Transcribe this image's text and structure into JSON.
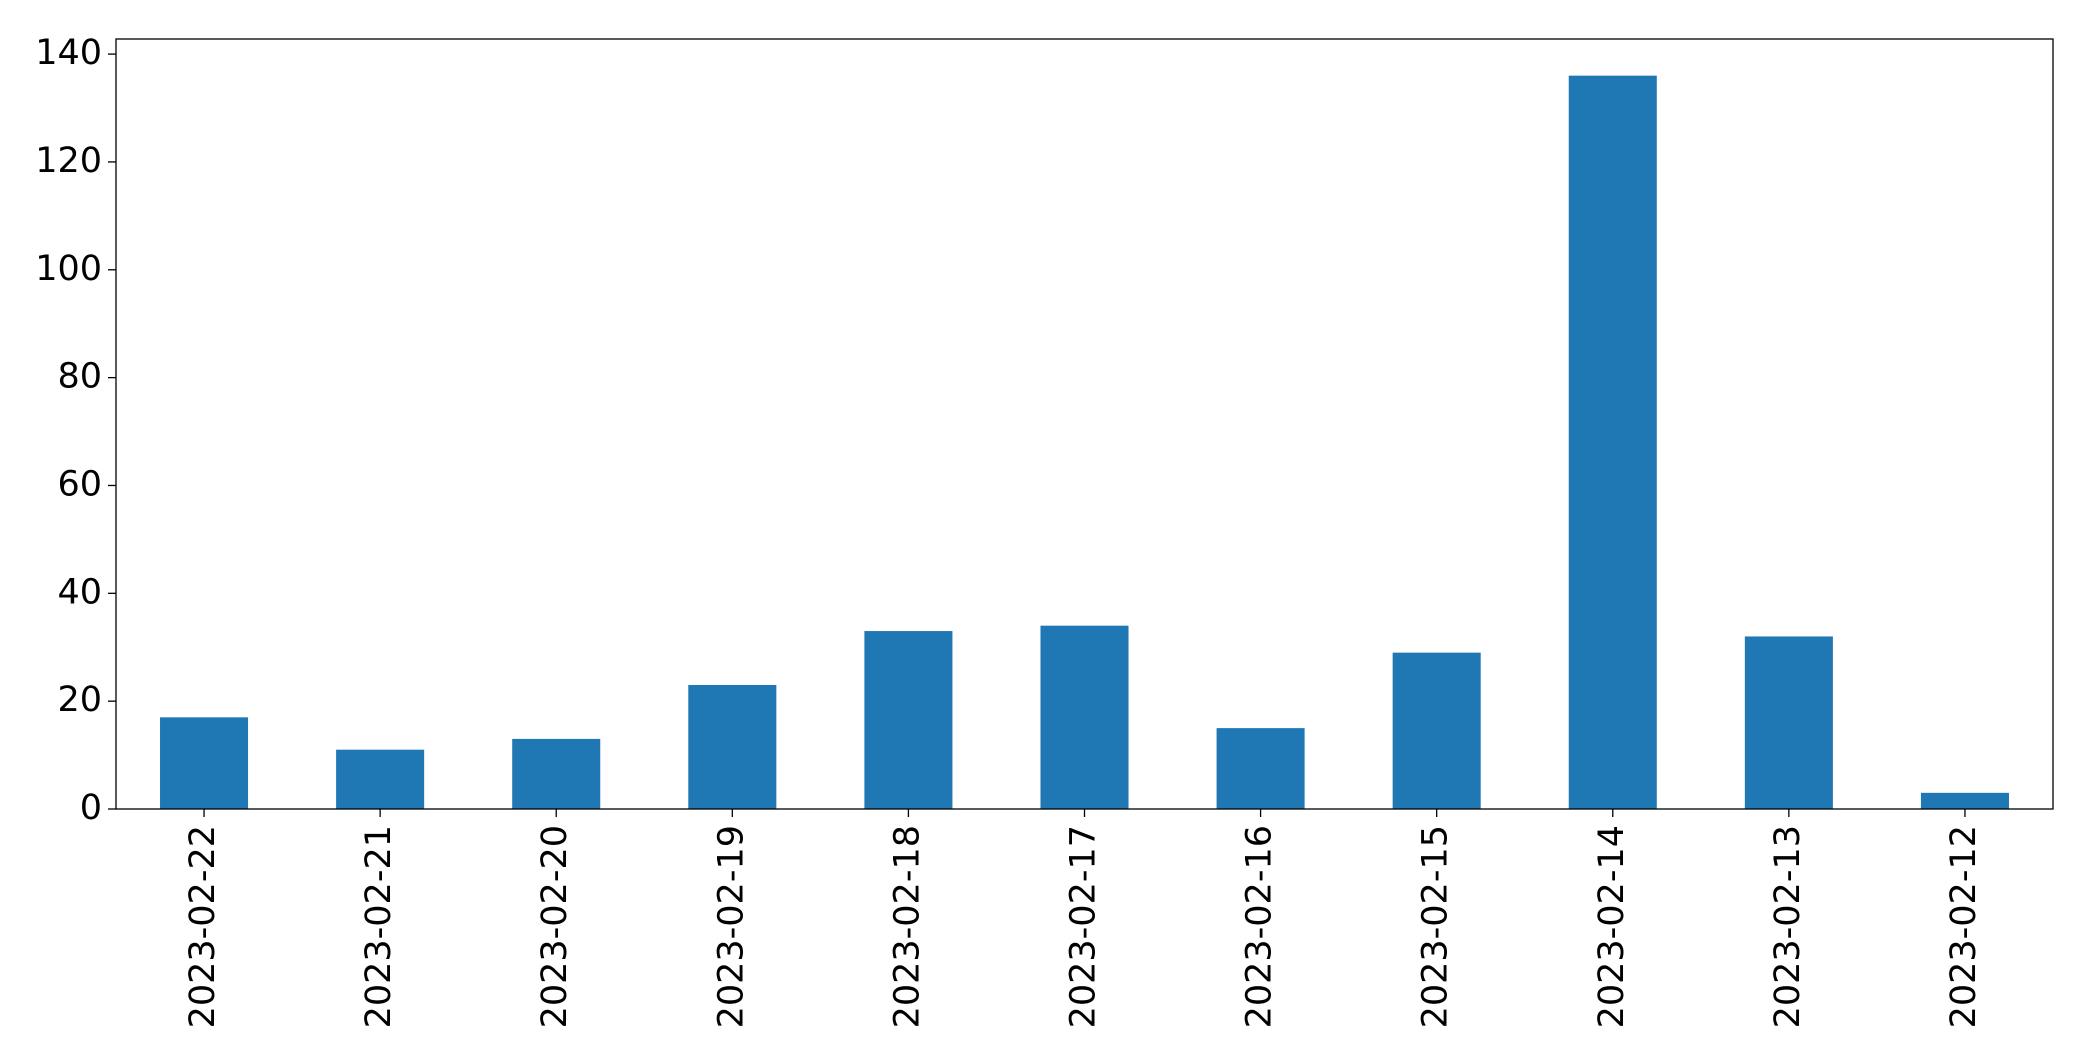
{
  "chart_data": {
    "type": "bar",
    "categories": [
      "2023-02-22",
      "2023-02-21",
      "2023-02-20",
      "2023-02-19",
      "2023-02-18",
      "2023-02-17",
      "2023-02-16",
      "2023-02-15",
      "2023-02-14",
      "2023-02-13",
      "2023-02-12"
    ],
    "values": [
      17,
      11,
      13,
      23,
      33,
      34,
      15,
      29,
      136,
      32,
      3
    ],
    "color": "#1f77b4",
    "ylim": [
      0,
      142.8
    ],
    "yticks": [
      0,
      20,
      40,
      60,
      80,
      100,
      120,
      140
    ],
    "grid": false
  }
}
